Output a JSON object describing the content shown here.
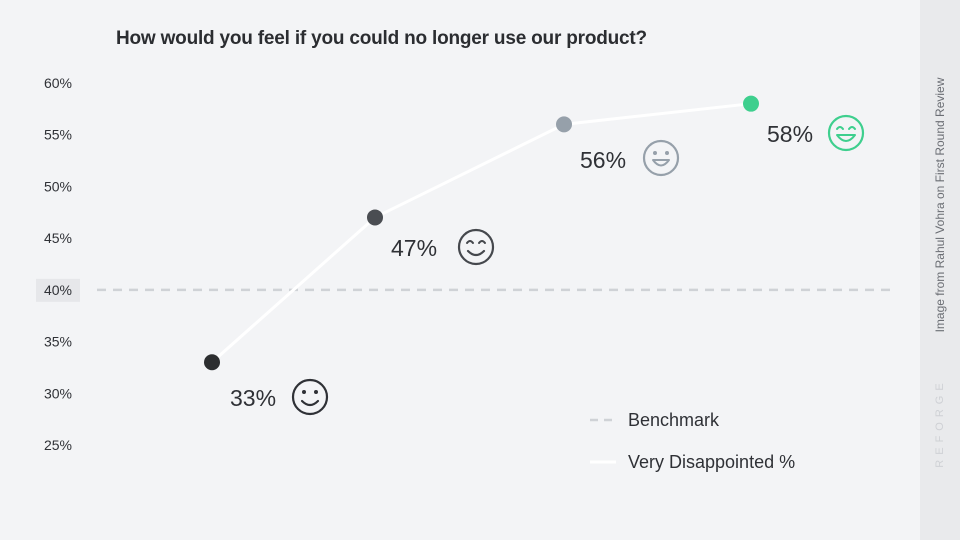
{
  "side_credit": "Image from Rahul Vohra on First Round Review",
  "watermark": "REFORGE",
  "chart_data": {
    "type": "line",
    "title": "How would you feel if you could no longer use our product?",
    "xlabel": "",
    "ylabel": "",
    "ylim": [
      25,
      60
    ],
    "ytick_labels": [
      "60%",
      "55%",
      "50%",
      "45%",
      "40%",
      "35%",
      "30%",
      "25%"
    ],
    "ytick_values": [
      60,
      55,
      50,
      45,
      40,
      35,
      30,
      25
    ],
    "highlighted_tick": "40%",
    "grid": false,
    "legend_position": "bottom-right",
    "x": [
      1,
      2,
      3,
      4
    ],
    "series": [
      {
        "name": "Very Disappointed %",
        "color": "#ffffff",
        "values": [
          33,
          47,
          56,
          58
        ],
        "labels": [
          "33%",
          "47%",
          "56%",
          "58%"
        ],
        "point_colors": [
          "#2c2e30",
          "#4a4d52",
          "#96a0aa",
          "#3ecf8e"
        ],
        "label_colors": [
          "#2f3136",
          "#2f3136",
          "#2f3136",
          "#2f3136"
        ],
        "icons": [
          "smile-face-icon",
          "blush-face-icon",
          "grin-face-icon",
          "laugh-face-icon"
        ],
        "icon_colors": [
          "#2f3136",
          "#45484d",
          "#96a0aa",
          "#3ecf8e"
        ]
      },
      {
        "name": "Benchmark",
        "color": "#cfd2d6",
        "value": 40,
        "style": "dashed"
      }
    ]
  }
}
